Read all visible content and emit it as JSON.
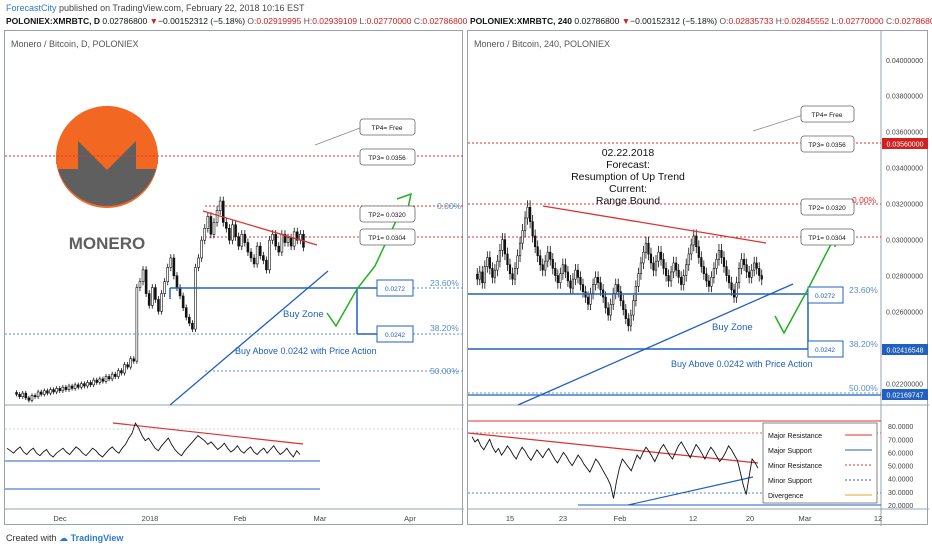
{
  "header": {
    "author": "ForecastCity",
    "text": "published on TradingView.com, February 22, 2018 10:16 EST"
  },
  "footer": {
    "created_with": "Created with",
    "brand": "TradingView"
  },
  "left_symbol": {
    "symbol": "POLONIEX:XMRBTC, D",
    "price": "0.02786800",
    "change": "−0.00152312 (−5.18%)",
    "o": "0.02919995",
    "h": "0.02939109",
    "l": "0.02770000",
    "c": "0.02786800"
  },
  "right_symbol": {
    "symbol": "POLONIEX:XMRBTC, 240",
    "price": "0.02786800",
    "change": "−0.00152312 (−5.18%)",
    "o": "0.02835733",
    "h": "0.02845552",
    "l": "0.02770000",
    "c": "0.02786800"
  },
  "colors": {
    "resistance": "#e03030",
    "support": "#2060c0",
    "arrow": "#20b020",
    "candle": "#111111",
    "fib": "#5b8fc9",
    "price_tag": "#d02020"
  },
  "chart_data": [
    {
      "type": "candlestick",
      "title": "Monero / Bitcoin, D, POLONIEX",
      "logo_text": "MONERO",
      "x_ticks": [
        "Dec",
        "2018",
        "Feb",
        "Mar",
        "Apr"
      ],
      "series": [
        {
          "close": [
            0.0155,
            0.0153,
            0.0156,
            0.0152,
            0.015,
            0.0154,
            0.0153,
            0.0157,
            0.0155,
            0.0158,
            0.0156,
            0.0159,
            0.0157,
            0.016,
            0.0158,
            0.0161,
            0.0159,
            0.0162,
            0.016,
            0.0163,
            0.0161,
            0.0164,
            0.0162,
            0.0165,
            0.0163,
            0.0167,
            0.0165,
            0.0168,
            0.0166,
            0.017,
            0.0168,
            0.0172,
            0.017,
            0.0175,
            0.0173,
            0.018,
            0.0178,
            0.0185,
            0.0183,
            0.0245,
            0.025,
            0.026,
            0.024,
            0.023,
            0.0245,
            0.0235,
            0.0225,
            0.024,
            0.025,
            0.0262,
            0.027,
            0.0255,
            0.0245,
            0.0238,
            0.0228,
            0.022,
            0.0215,
            0.021,
            0.0262,
            0.027,
            0.0285,
            0.0295,
            0.0305,
            0.029,
            0.03,
            0.031,
            0.0318,
            0.03,
            0.0295,
            0.0285,
            0.0298,
            0.0288,
            0.028,
            0.029,
            0.0283,
            0.0275,
            0.027,
            0.0265,
            0.028,
            0.0272,
            0.0268,
            0.026,
            0.0285,
            0.029,
            0.028,
            0.0275,
            0.029,
            0.0283,
            0.0287,
            0.028,
            0.0292,
            0.0285,
            0.029,
            0.0279
          ]
        }
      ],
      "levels": {
        "tp4": "TP4= Free",
        "tp3": "TP3= 0.0356",
        "tp2": "TP2= 0.0320",
        "tp1": "TP1= 0.0304",
        "buy_upper": "0.0272",
        "buy_lower": "0.0242"
      },
      "fib_labels": [
        "0.00%",
        "23.60%",
        "38.20%",
        "50.00%"
      ],
      "annotations": {
        "buy_zone": "Buy Zone",
        "buy_above": "Buy Above 0.0242 with Price Action"
      },
      "indicator": {
        "type": "line",
        "values": [
          62,
          60,
          58,
          61,
          63,
          59,
          57,
          60,
          62,
          58,
          56,
          59,
          61,
          57,
          55,
          58,
          60,
          62,
          59,
          57,
          60,
          63,
          61,
          58,
          56,
          59,
          62,
          60,
          57,
          55,
          58,
          61,
          63,
          60,
          58,
          62,
          65,
          70,
          74,
          82,
          78,
          72,
          68,
          70,
          66,
          62,
          60,
          64,
          67,
          70,
          65,
          61,
          58,
          56,
          60,
          63,
          66,
          69,
          72,
          70,
          68,
          65,
          67,
          64,
          61,
          63,
          66,
          62,
          59,
          61,
          64,
          60,
          58,
          61,
          63,
          59,
          57,
          60,
          62,
          58,
          61,
          64,
          60,
          57,
          59,
          62,
          58,
          55,
          60,
          57
        ]
      }
    },
    {
      "type": "candlestick",
      "title": "Monero / Bitcoin, 240, POLONIEX",
      "forecast": [
        "02.22.2018",
        "Forecast:",
        "Resumption of Up Trend",
        "Current:",
        "Range Bound"
      ],
      "x_ticks": [
        "15",
        "23",
        "Feb",
        "12",
        "20",
        "Mar",
        "12"
      ],
      "y_ticks": [
        "0.04000000",
        "0.03800000",
        "0.03600000",
        "0.03400000",
        "0.03200000",
        "0.03000000",
        "0.02800000",
        "0.02600000",
        "0.02400000",
        "0.02200000"
      ],
      "ylim": [
        0.0208,
        0.0416
      ],
      "price_tags": [
        "0.03560000",
        "0.02416548",
        "0.02169747"
      ],
      "series": [
        {
          "close": [
            0.0278,
            0.0282,
            0.0276,
            0.0285,
            0.029,
            0.0284,
            0.0279,
            0.0283,
            0.0288,
            0.0294,
            0.03,
            0.0292,
            0.0286,
            0.0281,
            0.0278,
            0.0284,
            0.0291,
            0.0298,
            0.0305,
            0.0312,
            0.0318,
            0.031,
            0.0302,
            0.0296,
            0.0291,
            0.0286,
            0.0283,
            0.0288,
            0.0293,
            0.0289,
            0.0284,
            0.028,
            0.0276,
            0.0281,
            0.0286,
            0.0282,
            0.0277,
            0.0273,
            0.0278,
            0.0283,
            0.0279,
            0.0275,
            0.0271,
            0.0268,
            0.0264,
            0.027,
            0.0275,
            0.0279,
            0.0276,
            0.0272,
            0.0268,
            0.0262,
            0.0258,
            0.0264,
            0.027,
            0.0275,
            0.0271,
            0.0266,
            0.0261,
            0.0256,
            0.0252,
            0.0258,
            0.0266,
            0.0274,
            0.0281,
            0.0287,
            0.0293,
            0.0298,
            0.0292,
            0.0287,
            0.0283,
            0.0288,
            0.0293,
            0.0289,
            0.0284,
            0.028,
            0.0277,
            0.0282,
            0.0287,
            0.0283,
            0.0279,
            0.0275,
            0.028,
            0.0286,
            0.0292,
            0.0297,
            0.0302,
            0.0296,
            0.029,
            0.0285,
            0.0281,
            0.0277,
            0.0274,
            0.0279,
            0.0284,
            0.0289,
            0.0294,
            0.029,
            0.0285,
            0.028,
            0.0276,
            0.0272,
            0.0268,
            0.0276,
            0.0284,
            0.0289,
            0.0286,
            0.0282,
            0.0279,
            0.0283,
            0.0287,
            0.0284,
            0.028,
            0.0278
          ]
        }
      ],
      "levels": {
        "tp4": "TP4= Free",
        "tp3": "TP3= 0.0356",
        "tp2": "TP2= 0.0320",
        "tp1": "TP1= 0.0304",
        "buy_upper": "0.0272",
        "buy_lower": "0.0242"
      },
      "fib_labels": [
        "0.00%",
        "23.60%",
        "38.20%",
        "50.00%"
      ],
      "annotations": {
        "buy_zone": "Buy Zone",
        "buy_above": "Buy Above 0.0242 with Price Action"
      },
      "indicator": {
        "type": "line",
        "y_ticks": [
          "80.0000",
          "70.0000",
          "60.0000",
          "50.0000",
          "40.0000",
          "30.0000",
          "20.0000"
        ],
        "values": [
          72,
          68,
          70,
          65,
          62,
          66,
          70,
          64,
          60,
          63,
          58,
          61,
          65,
          62,
          58,
          55,
          60,
          64,
          61,
          57,
          54,
          58,
          62,
          59,
          56,
          60,
          63,
          59,
          55,
          52,
          56,
          60,
          57,
          53,
          50,
          54,
          58,
          55,
          51,
          48,
          45,
          50,
          55,
          52,
          48,
          44,
          40,
          35,
          25,
          38,
          48,
          55,
          52,
          49,
          46,
          52,
          58,
          55,
          60,
          64,
          61,
          57,
          53,
          58,
          63,
          66,
          62,
          58,
          55,
          60,
          65,
          68,
          64,
          60,
          56,
          61,
          66,
          63,
          59,
          55,
          60,
          64,
          61,
          57,
          53,
          56,
          60,
          65,
          62,
          58,
          54,
          45,
          35,
          28,
          42,
          55,
          52,
          48
        ],
        "legend": [
          "Major Resistance",
          "Major Support",
          "Minor Resistance",
          "Minor Support",
          "Divergence"
        ]
      }
    }
  ]
}
